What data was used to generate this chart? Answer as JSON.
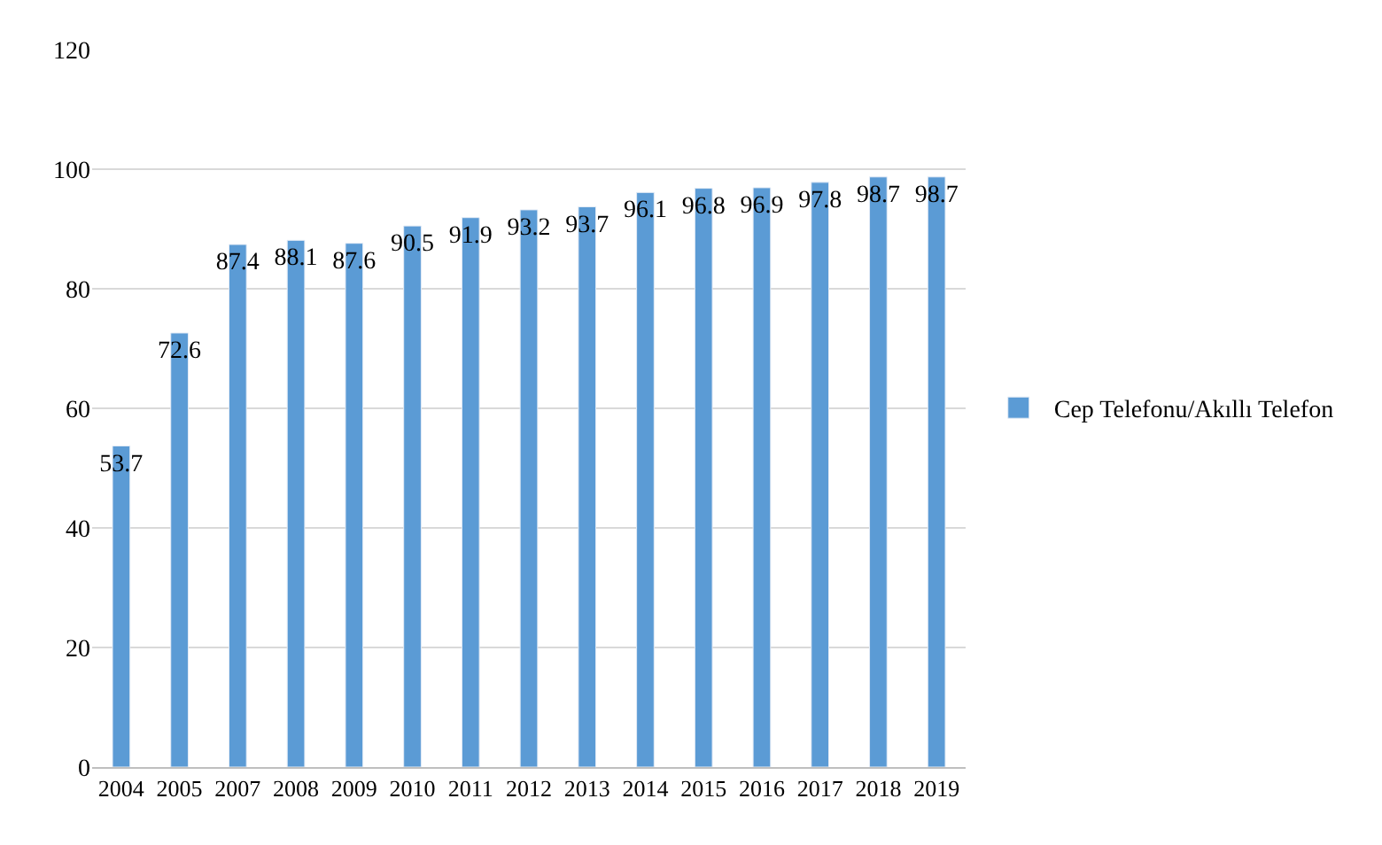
{
  "chart_data": {
    "type": "bar",
    "categories": [
      "2004",
      "2005",
      "2007",
      "2008",
      "2009",
      "2010",
      "2011",
      "2012",
      "2013",
      "2014",
      "2015",
      "2016",
      "2017",
      "2018",
      "2019"
    ],
    "series": [
      {
        "name": "Cep Telefonu/Akıllı Telefon",
        "color": "#5b9bd5",
        "values": [
          53.7,
          72.6,
          87.4,
          88.1,
          87.6,
          90.5,
          91.9,
          93.2,
          93.7,
          96.1,
          96.8,
          96.9,
          97.8,
          98.7,
          98.7
        ]
      }
    ],
    "ylim": [
      0,
      120
    ],
    "yticks": [
      0,
      20,
      40,
      60,
      80,
      100,
      120
    ],
    "grid": "y",
    "legend": "right",
    "data_labels": true
  }
}
